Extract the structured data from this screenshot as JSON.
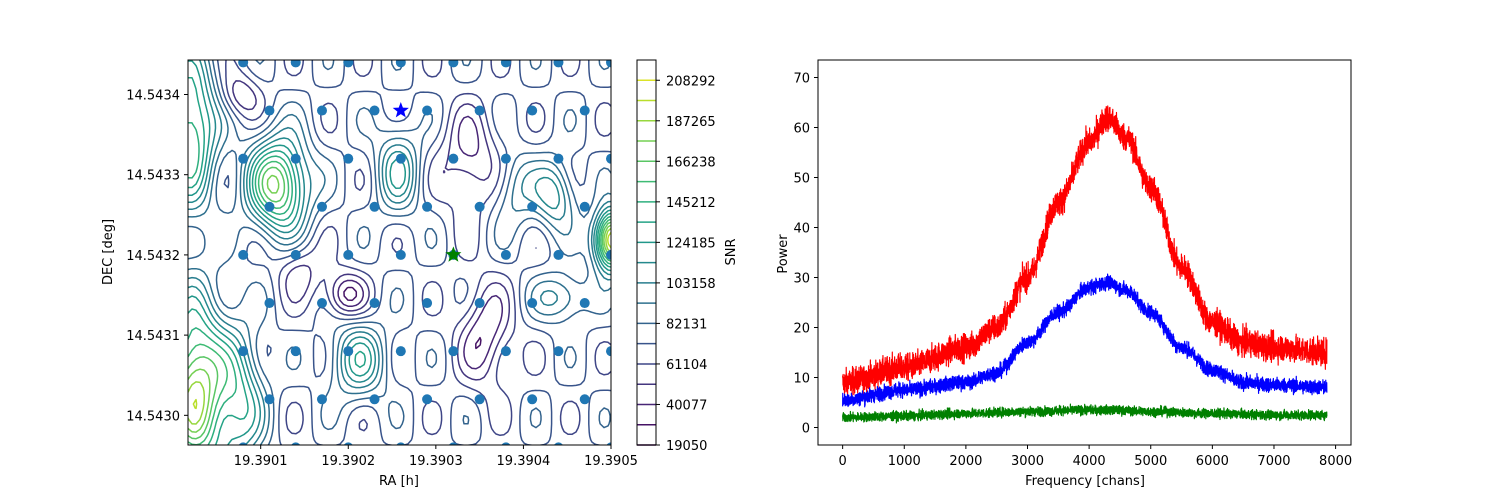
{
  "chart_data": [
    {
      "type": "contour",
      "xlabel": "RA [h]",
      "ylabel": "DEC [deg]",
      "xlim": [
        19.390017,
        19.3905
      ],
      "ylim": [
        14.542963,
        14.543443
      ],
      "xticks": [
        19.3901,
        19.3902,
        19.3903,
        19.3904,
        19.3905
      ],
      "xtick_labels": [
        "19.3901",
        "19.3902",
        "19.3903",
        "19.3904",
        "19.3905"
      ],
      "yticks": [
        14.543,
        14.5431,
        14.5432,
        14.5433,
        14.5434
      ],
      "ytick_labels": [
        "14.5430",
        "14.5431",
        "14.5432",
        "14.5433",
        "14.5434"
      ],
      "colorbar": {
        "label": "SNR",
        "levels": [
          19050,
          40077,
          61104,
          82131,
          103158,
          124185,
          145212,
          166238,
          187265,
          208292
        ],
        "tick_labels": [
          "19050",
          "40077",
          "61104",
          "82131",
          "103158",
          "124185",
          "145212",
          "166238",
          "187265",
          "208292"
        ],
        "colormap": "viridis",
        "range": [
          19050,
          218800
        ]
      },
      "grid_points": {
        "color": "#1f77b4",
        "ra": [
          19.39008,
          19.39014,
          19.3902,
          19.39026,
          19.39032,
          19.39038,
          19.39044
        ],
        "dec": [
          14.54296,
          14.54302,
          14.54308,
          14.54314,
          14.5432,
          14.54326,
          14.54332,
          14.54338,
          14.54344
        ]
      },
      "markers": [
        {
          "shape": "star",
          "color": "#0000ff",
          "ra": 19.39026,
          "dec": 14.54338
        },
        {
          "shape": "star",
          "color": "#008000",
          "ra": 19.39032,
          "dec": 14.5432
        }
      ]
    },
    {
      "type": "line",
      "xlabel": "Frequency [chans]",
      "ylabel": "Power",
      "xlim": [
        -400,
        8250
      ],
      "ylim": [
        -3.5,
        73.5
      ],
      "xticks": [
        0,
        1000,
        2000,
        3000,
        4000,
        5000,
        6000,
        7000,
        8000
      ],
      "yticks": [
        0,
        10,
        20,
        30,
        40,
        50,
        60,
        70
      ],
      "n_channels": 7860,
      "series": [
        {
          "color": "#ff0000",
          "x": [
            0,
            1000,
            2000,
            2500,
            3000,
            3500,
            4000,
            4300,
            4600,
            5000,
            5500,
            6000,
            6500,
            7000,
            7860
          ],
          "y": [
            9,
            12,
            16,
            20,
            30,
            45,
            57,
            62,
            58,
            48,
            32,
            21,
            17,
            16,
            15
          ],
          "noise": 2.6
        },
        {
          "color": "#0000ff",
          "x": [
            0,
            1000,
            2000,
            2500,
            3000,
            3500,
            4000,
            4300,
            4600,
            5000,
            5500,
            6000,
            6500,
            7000,
            7860
          ],
          "y": [
            5.5,
            7.5,
            9,
            11,
            17,
            23,
            28,
            29,
            27.5,
            23,
            16,
            11.5,
            9,
            8.5,
            8
          ],
          "noise": 1.4
        },
        {
          "color": "#008000",
          "x": [
            0,
            1000,
            2000,
            3000,
            4000,
            4300,
            5000,
            6000,
            7000,
            7860
          ],
          "y": [
            2,
            2.3,
            2.8,
            3.2,
            3.5,
            3.5,
            3.2,
            2.8,
            2.5,
            2.5
          ],
          "noise": 0.9
        }
      ]
    }
  ]
}
